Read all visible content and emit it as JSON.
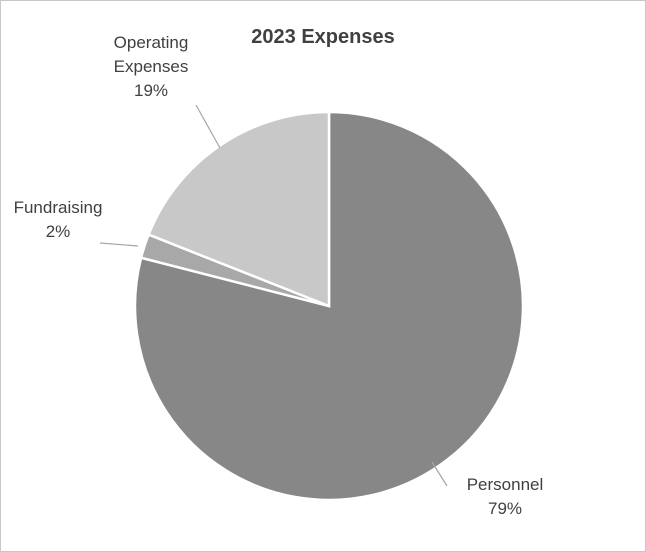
{
  "chart_data": {
    "type": "pie",
    "title": "2023 Expenses",
    "slices": [
      {
        "name": "Personnel",
        "value": 79,
        "label": "79%",
        "color": "#878787"
      },
      {
        "name": "Fundraising",
        "value": 2,
        "label": "2%",
        "color": "#a8a8a8"
      },
      {
        "name": "Operating Expenses",
        "value": 19,
        "label": "19%",
        "color": "#c8c8c8"
      }
    ],
    "category_label_lines": {
      "Personnel": [
        "Personnel"
      ],
      "Fundraising": [
        "Fundraising"
      ],
      "Operating Expenses": [
        "Operating",
        "Expenses"
      ]
    },
    "start_angle_deg": 0,
    "direction": "clockwise",
    "labels": "outside with leader lines"
  }
}
